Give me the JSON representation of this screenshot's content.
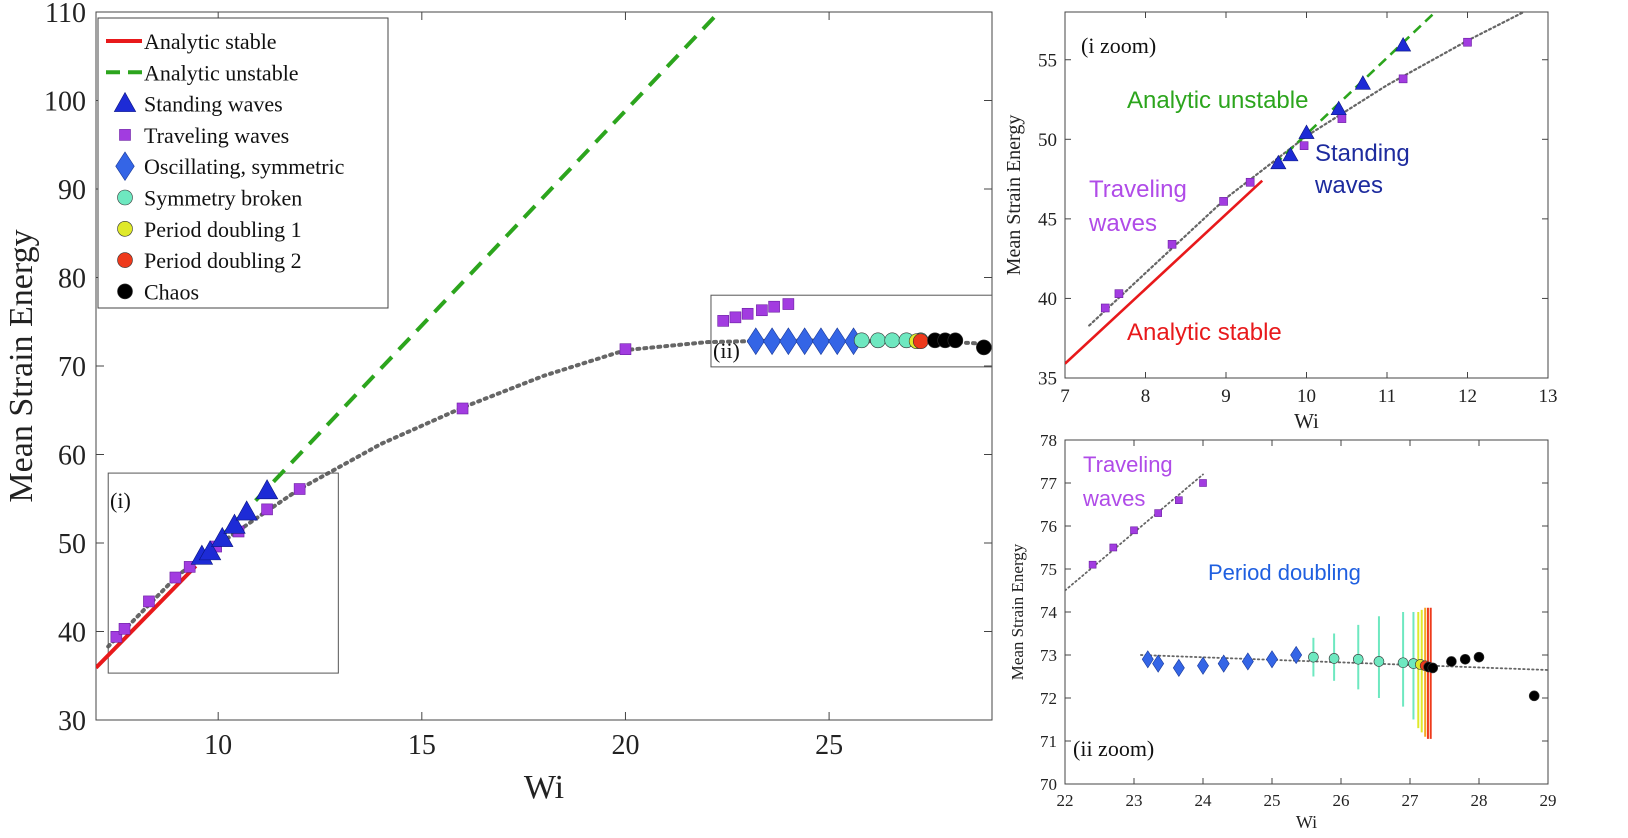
{
  "colors": {
    "analytic_stable": "#e8191b",
    "analytic_unstable": "#2ca51d",
    "standing": "#1d2bd6",
    "traveling": "#a23ce0",
    "oscillating": "#3465e6",
    "symmetry": "#6ee8c0",
    "pd1": "#dfe92a",
    "pd2": "#ee3a1c",
    "chaos": "#000000",
    "fit": "#666666"
  },
  "chart_data": [
    {
      "id": "main",
      "type": "scatter",
      "xlabel": "Wi",
      "ylabel": "Mean Strain Energy",
      "xlim": [
        7,
        29
      ],
      "ylim": [
        30,
        110
      ],
      "xticks": [
        "10",
        "15",
        "20",
        "25"
      ],
      "yticks": [
        "30",
        "40",
        "50",
        "60",
        "70",
        "80",
        "90",
        "100",
        "110"
      ],
      "legend": {
        "position": "top-left",
        "entries": [
          "Analytic stable",
          "Analytic unstable",
          "Standing waves",
          "Traveling waves",
          "Oscillating, symmetric",
          "Symmetry broken",
          "Period doubling 1",
          "Period doubling 2",
          "Chaos"
        ]
      },
      "inset_labels": [
        "(i)",
        "(ii)"
      ],
      "series": [
        {
          "name": "Analytic stable",
          "kind": "line",
          "x": [
            7.0,
            9.45
          ],
          "y": [
            35.9,
            47.4
          ]
        },
        {
          "name": "Analytic unstable",
          "kind": "dash",
          "x": [
            9.6,
            22.3
          ],
          "y": [
            48.4,
            110.0
          ]
        },
        {
          "name": "Standing waves",
          "kind": "triangle",
          "x": [
            9.6,
            9.8,
            10.1,
            10.4,
            10.7,
            11.2
          ],
          "y": [
            48.5,
            49.0,
            50.5,
            52.0,
            53.5,
            55.9
          ]
        },
        {
          "name": "Traveling waves",
          "kind": "square",
          "x": [
            7.5,
            7.7,
            8.3,
            8.95,
            9.3,
            9.95,
            10.5,
            11.2,
            12.0,
            16.0,
            20.0,
            22.4,
            22.7,
            23.0,
            23.35,
            23.65,
            24.0
          ],
          "y": [
            39.4,
            40.3,
            43.4,
            46.1,
            47.3,
            49.6,
            51.3,
            53.8,
            56.1,
            65.2,
            71.9,
            75.1,
            75.5,
            75.9,
            76.3,
            76.7,
            77.0
          ]
        },
        {
          "name": "Oscillating, symmetric",
          "kind": "diamond",
          "x": [
            23.2,
            23.6,
            24.0,
            24.4,
            24.8,
            25.2,
            25.6
          ],
          "y": [
            72.8,
            72.8,
            72.8,
            72.8,
            72.8,
            72.8,
            72.8
          ]
        },
        {
          "name": "Symmetry broken",
          "kind": "circle",
          "x": [
            25.8,
            26.2,
            26.55,
            26.9,
            27.25
          ],
          "y": [
            72.9,
            72.9,
            72.9,
            72.9,
            72.9
          ]
        },
        {
          "name": "Period doubling 1",
          "kind": "circle",
          "x": [
            27.15
          ],
          "y": [
            72.8
          ]
        },
        {
          "name": "Period doubling 2",
          "kind": "circle",
          "x": [
            27.25
          ],
          "y": [
            72.8
          ]
        },
        {
          "name": "Chaos",
          "kind": "circle",
          "x": [
            27.6,
            27.85,
            28.1,
            28.8
          ],
          "y": [
            72.9,
            72.9,
            72.9,
            72.1
          ]
        }
      ],
      "fit_x": [
        7.3,
        8,
        9,
        10,
        11,
        12,
        14,
        16,
        18,
        20,
        22,
        24,
        26,
        28,
        28.9
      ],
      "fit_y": [
        38.3,
        41.6,
        46.3,
        49.8,
        53.0,
        56.1,
        61.2,
        65.3,
        68.9,
        71.8,
        72.7,
        72.9,
        72.8,
        72.7,
        72.5
      ],
      "insets": [
        {
          "label": "(i)",
          "x": [
            7.3,
            12.95
          ],
          "y": [
            35.3,
            57.9
          ]
        },
        {
          "label": "(ii)",
          "x": [
            22.1,
            29.0
          ],
          "y": [
            69.9,
            78.0
          ]
        }
      ]
    },
    {
      "id": "zoom_i",
      "type": "scatter",
      "title": "(i zoom)",
      "xlabel": "Wi",
      "ylabel": "Mean Strain Energy",
      "xlim": [
        7,
        13
      ],
      "ylim": [
        35,
        58
      ],
      "xticks": [
        "7",
        "8",
        "9",
        "10",
        "11",
        "12",
        "13"
      ],
      "yticks": [
        "35",
        "40",
        "45",
        "50",
        "55"
      ],
      "annotations": [
        {
          "text": "Analytic unstable",
          "color": "#2ca51d"
        },
        {
          "text": "Standing",
          "color": "#1d2b9e"
        },
        {
          "text": "waves",
          "color": "#1d2b9e"
        },
        {
          "text": "Traveling",
          "color": "#b04be8"
        },
        {
          "text": "waves",
          "color": "#b04be8"
        },
        {
          "text": "Analytic stable",
          "color": "#e8191b"
        }
      ],
      "series": [
        {
          "name": "Analytic stable",
          "kind": "line",
          "x": [
            7.0,
            9.45
          ],
          "y": [
            35.9,
            47.4
          ]
        },
        {
          "name": "Analytic unstable",
          "kind": "dash",
          "x": [
            9.6,
            11.6
          ],
          "y": [
            48.4,
            58.0
          ]
        },
        {
          "name": "Standing waves",
          "kind": "triangle",
          "x": [
            9.65,
            9.8,
            10.0,
            10.4,
            10.7,
            11.2
          ],
          "y": [
            48.5,
            49.0,
            50.4,
            51.9,
            53.5,
            55.9
          ]
        },
        {
          "name": "Traveling waves",
          "kind": "square",
          "x": [
            7.5,
            7.67,
            8.33,
            8.97,
            9.3,
            9.97,
            10.44,
            11.2,
            12.0
          ],
          "y": [
            39.4,
            40.3,
            43.4,
            46.1,
            47.3,
            49.6,
            51.3,
            53.8,
            56.1
          ]
        }
      ],
      "fit_x": [
        7.3,
        8,
        9,
        10,
        11,
        12,
        12.7
      ],
      "fit_y": [
        38.3,
        41.6,
        46.3,
        50.2,
        53.4,
        56.2,
        58.0
      ]
    },
    {
      "id": "zoom_ii",
      "type": "scatter",
      "title": "(ii zoom)",
      "xlabel": "Wi",
      "ylabel": "Mean Strain Energy",
      "xlim": [
        22,
        29
      ],
      "ylim": [
        70,
        78
      ],
      "xticks": [
        "22",
        "23",
        "24",
        "25",
        "26",
        "27",
        "28",
        "29"
      ],
      "yticks": [
        "70",
        "71",
        "72",
        "73",
        "74",
        "75",
        "76",
        "77",
        "78"
      ],
      "annotations": [
        {
          "text": "Traveling",
          "color": "#b04be8"
        },
        {
          "text": "waves",
          "color": "#b04be8"
        },
        {
          "text": "Period doubling",
          "color": "#1f5fe0"
        }
      ],
      "series": [
        {
          "name": "Traveling waves",
          "kind": "square",
          "x": [
            22.4,
            22.7,
            23.0,
            23.35,
            23.65,
            24.0
          ],
          "y": [
            75.1,
            75.5,
            75.9,
            76.3,
            76.6,
            77.0
          ]
        },
        {
          "name": "Oscillating, symmetric",
          "kind": "diamond",
          "x": [
            23.2,
            23.35,
            23.65,
            24.0,
            24.3,
            24.65,
            25.0,
            25.35
          ],
          "y": [
            72.9,
            72.8,
            72.7,
            72.75,
            72.8,
            72.85,
            72.9,
            73.0
          ]
        },
        {
          "name": "Symmetry broken",
          "kind": "circle",
          "x": [
            25.6,
            25.9,
            26.25,
            26.55,
            26.9,
            27.05
          ],
          "y": [
            72.95,
            72.92,
            72.9,
            72.85,
            72.82,
            72.8
          ]
        },
        {
          "name": "Period doubling 1",
          "kind": "circle",
          "x": [
            27.15
          ],
          "y": [
            72.78
          ]
        },
        {
          "name": "Period doubling 2",
          "kind": "circle",
          "x": [
            27.22
          ],
          "y": [
            72.75
          ]
        },
        {
          "name": "Chaos",
          "kind": "circle",
          "x": [
            27.27,
            27.33,
            27.6,
            27.8,
            28.0,
            28.8
          ],
          "y": [
            72.72,
            72.7,
            72.85,
            72.9,
            72.95,
            72.05
          ]
        }
      ],
      "error_bars": [
        {
          "x": 25.6,
          "lo": 72.5,
          "hi": 73.4,
          "color": "#6ee8c0"
        },
        {
          "x": 25.9,
          "lo": 72.4,
          "hi": 73.5,
          "color": "#6ee8c0"
        },
        {
          "x": 26.25,
          "lo": 72.2,
          "hi": 73.7,
          "color": "#6ee8c0"
        },
        {
          "x": 26.55,
          "lo": 72.0,
          "hi": 73.9,
          "color": "#6ee8c0"
        },
        {
          "x": 26.9,
          "lo": 71.8,
          "hi": 74.0,
          "color": "#6ee8c0"
        },
        {
          "x": 27.05,
          "lo": 71.5,
          "hi": 74.0,
          "color": "#6ee8c0"
        },
        {
          "x": 27.12,
          "lo": 71.3,
          "hi": 74.0,
          "color": "#dfe92a"
        },
        {
          "x": 27.17,
          "lo": 71.2,
          "hi": 74.05,
          "color": "#dfe92a"
        },
        {
          "x": 27.22,
          "lo": 71.1,
          "hi": 74.1,
          "color": "#f5a623"
        },
        {
          "x": 27.26,
          "lo": 71.05,
          "hi": 74.1,
          "color": "#ee3a1c"
        },
        {
          "x": 27.3,
          "lo": 71.05,
          "hi": 74.1,
          "color": "#ee3a1c"
        }
      ],
      "fit_x": [
        22.0,
        24.0
      ],
      "fit_y": [
        74.5,
        77.2
      ],
      "fit2_x": [
        23.1,
        29.0
      ],
      "fit2_y": [
        73.0,
        72.65
      ]
    }
  ]
}
